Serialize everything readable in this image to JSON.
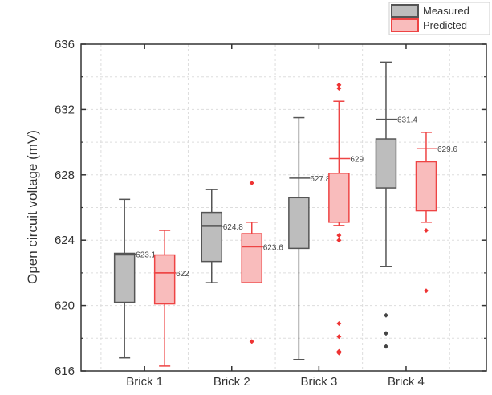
{
  "chart_data": {
    "type": "box",
    "title": "",
    "xlabel": "",
    "ylabel": "Open circuit voltage (mV)",
    "ylim": [
      616,
      636
    ],
    "yticks": [
      616,
      620,
      624,
      628,
      632,
      636
    ],
    "yticks_minor": [
      618,
      622,
      626,
      630,
      634
    ],
    "grid": true,
    "legend_position": "top-right-outside",
    "categories": [
      "Brick 1",
      "Brick 2",
      "Brick 3",
      "Brick 4"
    ],
    "series": [
      {
        "name": "Measured",
        "color": "#555555",
        "fill": "#bdbdbd",
        "boxes": [
          {
            "whisker_low": 616.8,
            "q1": 620.2,
            "median": 623.1,
            "q3": 623.2,
            "whisker_high": 626.5,
            "mean_label": "623.1",
            "mean": 623.15,
            "outliers": []
          },
          {
            "whisker_low": 621.4,
            "q1": 622.7,
            "median": 624.9,
            "q3": 625.7,
            "whisker_high": 627.1,
            "mean_label": "624.8",
            "mean": 624.85,
            "outliers": []
          },
          {
            "whisker_low": 616.7,
            "q1": 623.5,
            "median": null,
            "q3": 626.6,
            "whisker_high": 631.5,
            "mean_label": "627.8",
            "mean": 627.8,
            "outliers": []
          },
          {
            "whisker_low": 622.4,
            "q1": 627.2,
            "median": null,
            "q3": 630.2,
            "whisker_high": 634.9,
            "mean_label": "631.4",
            "mean": 631.4,
            "outliers": [
              619.4,
              618.3,
              617.5
            ]
          }
        ]
      },
      {
        "name": "Predicted",
        "color": "#ee4444",
        "fill": "#f9bcbc",
        "boxes": [
          {
            "whisker_low": 616.3,
            "q1": 620.1,
            "median": 622.0,
            "q3": 623.1,
            "whisker_high": 624.6,
            "mean_label": "622",
            "mean": 622.0,
            "outliers": []
          },
          {
            "whisker_low": 621.4,
            "q1": 621.4,
            "median": 623.6,
            "q3": 624.4,
            "whisker_high": 625.1,
            "mean_label": "623.6",
            "mean": 623.6,
            "outliers": [
              627.5,
              617.8
            ]
          },
          {
            "whisker_low": 624.9,
            "q1": 625.1,
            "median": null,
            "q3": 628.1,
            "whisker_high": 632.5,
            "mean_label": "629",
            "mean": 629.0,
            "outliers": [
              633.5,
              633.3,
              624.3,
              624.0,
              618.9,
              618.1,
              617.2,
              617.1
            ]
          },
          {
            "whisker_low": 625.1,
            "q1": 625.8,
            "median": null,
            "q3": 628.8,
            "whisker_high": 630.6,
            "mean_label": "629.6",
            "mean": 629.6,
            "outliers": [
              624.6,
              620.9
            ]
          }
        ]
      }
    ]
  }
}
